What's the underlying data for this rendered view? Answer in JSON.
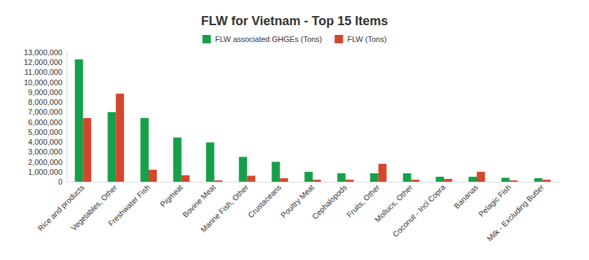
{
  "chart_data": {
    "type": "bar",
    "title": "FLW for Vietnam - Top 15 Items",
    "categories": [
      "Rice and products",
      "Vegetables, Other",
      "Freshwater Fish",
      "Pigmeat",
      "Bovine Meat",
      "Marine Fish, Other",
      "Crustaceans",
      "Poultry Meat",
      "Cephalopods",
      "Fruits, Other",
      "Mollucs, Other",
      "Coconut - Incl Copra",
      "Bananas",
      "Pelagic Fish",
      "Milk - Excluding Butter"
    ],
    "series": [
      {
        "name": "FLW associated GHGEs (Tons)",
        "color": "#16a04a",
        "values": [
          12300000,
          7000000,
          6400000,
          4450000,
          3950000,
          2500000,
          2000000,
          1000000,
          850000,
          850000,
          850000,
          500000,
          500000,
          400000,
          350000
        ]
      },
      {
        "name": "FLW (Tons)",
        "color": "#d4472c",
        "values": [
          6400000,
          8850000,
          1200000,
          650000,
          130000,
          600000,
          350000,
          200000,
          200000,
          1800000,
          200000,
          280000,
          1000000,
          130000,
          200000
        ]
      }
    ],
    "ylim": [
      0,
      13000000
    ],
    "yticks": [
      0,
      {
        "value": 1000000,
        "label": "1,000,000"
      },
      {
        "value": 2000000,
        "label": "2,000,000"
      },
      {
        "value": 3000000,
        "label": "3,000,000"
      },
      {
        "value": 4000000,
        "label": "4,000,000"
      },
      {
        "value": 5000000,
        "label": "5,000,000"
      },
      {
        "value": 6000000,
        "label": "6,000,000"
      },
      {
        "value": 7000000,
        "label": "7,000,000"
      },
      {
        "value": 8000000,
        "label": "8,000,000"
      },
      {
        "value": 9000000,
        "label": "9,000,000"
      },
      {
        "value": 10000000,
        "label": "10,000,000"
      },
      {
        "value": 11000000,
        "label": "11,000,000"
      },
      {
        "value": 12000000,
        "label": "12,000,000"
      },
      {
        "value": 13000000,
        "label": "13,000,000"
      }
    ],
    "grid": false,
    "legend": "top"
  }
}
